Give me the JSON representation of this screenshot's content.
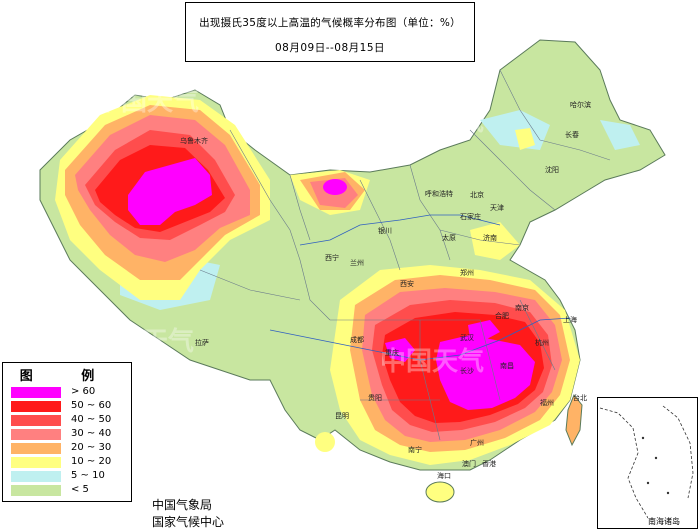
{
  "title": "出现摄氏35度以上高温的气候概率分布图（单位：%）",
  "date_range": "08月09日--08月15日",
  "legend": {
    "title": "图 例",
    "items": [
      {
        "label": "> 60",
        "color": "#ff00ff"
      },
      {
        "label": "50 ~ 60",
        "color": "#ff1a1a"
      },
      {
        "label": "40 ~ 50",
        "color": "#ff4d4d"
      },
      {
        "label": "30 ~ 40",
        "color": "#ff8080"
      },
      {
        "label": "20 ~ 30",
        "color": "#ffb366"
      },
      {
        "label": "10 ~ 20",
        "color": "#ffff80"
      },
      {
        "label": "5 ~ 10",
        "color": "#bff0f0"
      },
      {
        "label": "< 5",
        "color": "#c8e6a0"
      }
    ]
  },
  "agency": [
    "中国气象局",
    "国家气候中心"
  ],
  "inset_label": "南海诸岛",
  "watermark": "中国天气",
  "cities": [
    "乌鲁木齐",
    "哈尔滨",
    "长春",
    "沈阳",
    "呼和浩特",
    "北京",
    "天津",
    "石家庄",
    "太原",
    "济南",
    "银川",
    "兰州",
    "西宁",
    "郑州",
    "西安",
    "南京",
    "合肥",
    "上海",
    "武汉",
    "杭州",
    "成都",
    "重庆",
    "拉萨",
    "南昌",
    "长沙",
    "福州",
    "贵阳",
    "昆明",
    "南宁",
    "广州",
    "澳门",
    "香港",
    "海口",
    "台北"
  ]
}
